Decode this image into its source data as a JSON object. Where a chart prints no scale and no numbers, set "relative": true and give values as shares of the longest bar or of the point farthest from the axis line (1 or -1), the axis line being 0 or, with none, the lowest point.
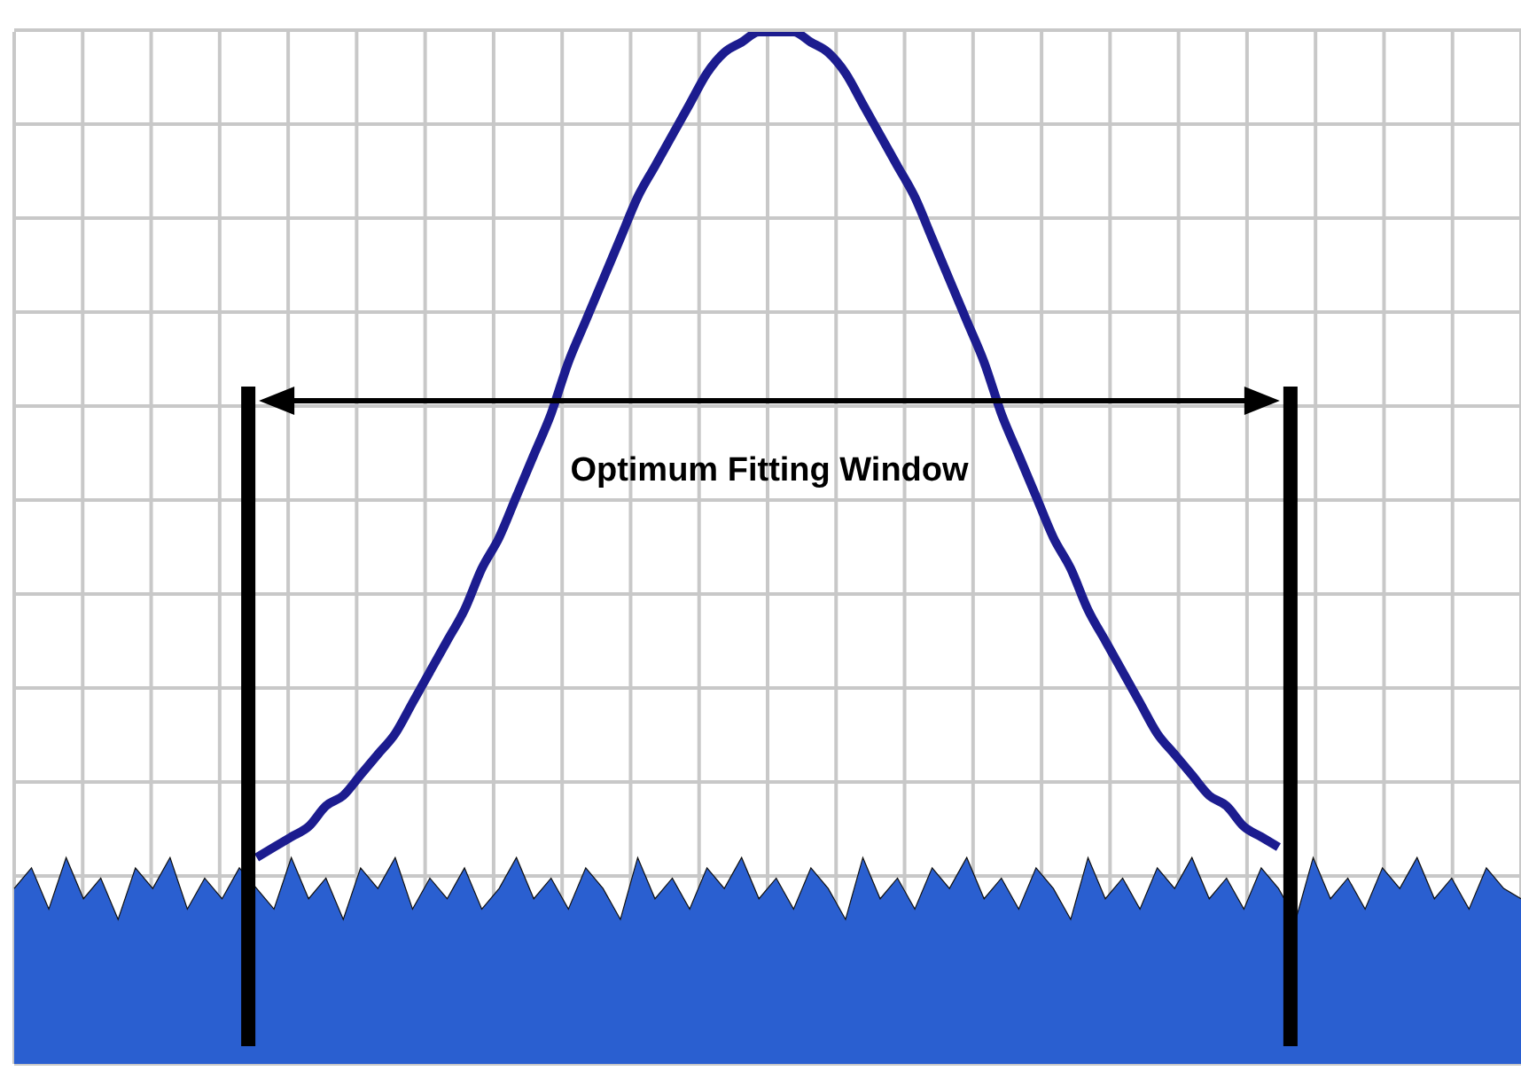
{
  "chart_data": {
    "type": "line",
    "relative": true,
    "grid": true,
    "legend": false,
    "marker": "none",
    "tick_labels": false,
    "categories": [
      null,
      null,
      null,
      null,
      null,
      null,
      null,
      null,
      null,
      null,
      null,
      null,
      null,
      null,
      null,
      null,
      null,
      null,
      null,
      null,
      null,
      null,
      null,
      null,
      null,
      null,
      null,
      null,
      null,
      null,
      null,
      null,
      null,
      null,
      null,
      null,
      null,
      null,
      null,
      null,
      null,
      null,
      null,
      null,
      null,
      null,
      null,
      null,
      null,
      null,
      null,
      null,
      null,
      null,
      null,
      null,
      null,
      null,
      null,
      null,
      null,
      null,
      null,
      null,
      null,
      null,
      null,
      null,
      null,
      null,
      null,
      null,
      null,
      null,
      null,
      null,
      null,
      null,
      null,
      null,
      null,
      null,
      null,
      null,
      null,
      null,
      null,
      null
    ],
    "series": [
      {
        "type": "area",
        "color": "#2a5fd0",
        "values": [
          0.17,
          0.19,
          0.15,
          0.2,
          0.16,
          0.18,
          0.14,
          0.19,
          0.17,
          0.2,
          0.15,
          0.18,
          0.16,
          0.19,
          0.17,
          0.15,
          0.2,
          0.16,
          0.18,
          0.14,
          0.19,
          0.17,
          0.2,
          0.15,
          0.18,
          0.16,
          0.19,
          0.15,
          0.17,
          0.2,
          0.16,
          0.18,
          0.15,
          0.19,
          0.17,
          0.14,
          0.2,
          0.16,
          0.18,
          0.15,
          0.19,
          0.17,
          0.2,
          0.16,
          0.18,
          0.15,
          0.19,
          0.17,
          0.14,
          0.2,
          0.16,
          0.18,
          0.15,
          0.19,
          0.17,
          0.2,
          0.16,
          0.18,
          0.15,
          0.19,
          0.17,
          0.14,
          0.2,
          0.16,
          0.18,
          0.15,
          0.19,
          0.17,
          0.2,
          0.16,
          0.18,
          0.15,
          0.19,
          0.17,
          0.14,
          0.2,
          0.16,
          0.18,
          0.15,
          0.19,
          0.17,
          0.2,
          0.16,
          0.18,
          0.15,
          0.19,
          0.17,
          0.16
        ]
      },
      {
        "color": "#1c1c8f",
        "values": [
          null,
          null,
          null,
          null,
          null,
          null,
          null,
          null,
          null,
          null,
          null,
          null,
          null,
          null,
          0.2,
          0.21,
          0.22,
          0.23,
          0.25,
          0.26,
          0.28,
          0.3,
          0.32,
          0.35,
          0.38,
          0.41,
          0.44,
          0.48,
          0.51,
          0.55,
          0.59,
          0.63,
          0.68,
          0.72,
          0.76,
          0.8,
          0.84,
          0.87,
          0.9,
          0.93,
          0.96,
          0.98,
          0.99,
          1.0,
          1.0,
          1.0,
          0.99,
          0.98,
          0.96,
          0.93,
          0.9,
          0.87,
          0.84,
          0.8,
          0.76,
          0.72,
          0.68,
          0.63,
          0.59,
          0.55,
          0.51,
          0.48,
          0.44,
          0.41,
          0.38,
          0.35,
          0.32,
          0.3,
          0.28,
          0.26,
          0.25,
          0.23,
          0.22,
          0.21,
          null,
          null,
          null,
          null,
          null,
          null,
          null,
          null,
          null,
          null,
          null,
          null,
          null,
          null
        ]
      }
    ],
    "annotations": [
      "Optimum Fitting Window"
    ]
  }
}
